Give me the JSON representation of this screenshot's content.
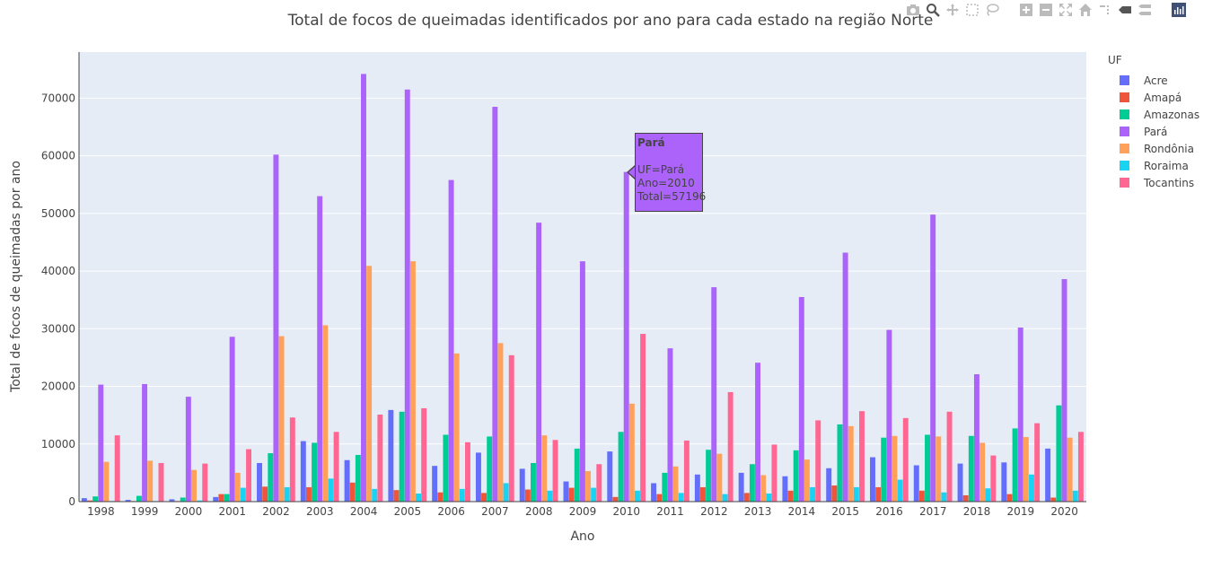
{
  "chart_data": {
    "type": "bar",
    "title": "Total de focos de queimadas identificados por ano para cada estado na região Norte",
    "xlabel": "Ano",
    "ylabel": "Total de focos de queimadas por ano",
    "ylim": [
      0,
      78000
    ],
    "yticks": [
      0,
      10000,
      20000,
      30000,
      40000,
      50000,
      60000,
      70000
    ],
    "grid": true,
    "legend_title": "UF",
    "legend_placement": "right",
    "categories": [
      "1998",
      "1999",
      "2000",
      "2001",
      "2002",
      "2003",
      "2004",
      "2005",
      "2006",
      "2007",
      "2008",
      "2009",
      "2010",
      "2011",
      "2012",
      "2013",
      "2014",
      "2015",
      "2016",
      "2017",
      "2018",
      "2019",
      "2020"
    ],
    "series": [
      {
        "name": "Acre",
        "color": "#636efa",
        "values": [
          600,
          300,
          400,
          800,
          6700,
          10500,
          7200,
          15900,
          6200,
          8500,
          5700,
          3500,
          8700,
          3200,
          4700,
          5000,
          4400,
          5800,
          7700,
          6300,
          6600,
          6800,
          9200
        ]
      },
      {
        "name": "Amapá",
        "color": "#ef553b",
        "values": [
          200,
          100,
          100,
          1300,
          2600,
          2500,
          3300,
          2000,
          1600,
          1500,
          2100,
          2400,
          800,
          1300,
          2500,
          1500,
          1900,
          2800,
          2500,
          1900,
          1100,
          1300,
          700
        ]
      },
      {
        "name": "Amazonas",
        "color": "#00cc96",
        "values": [
          900,
          1000,
          700,
          1300,
          8400,
          10200,
          8100,
          15600,
          11600,
          11300,
          6700,
          9200,
          12100,
          5000,
          9000,
          6500,
          8900,
          13400,
          11100,
          11600,
          11400,
          12700,
          16700
        ]
      },
      {
        "name": "Pará",
        "color": "#ab63fa",
        "values": [
          20300,
          20400,
          18200,
          28600,
          60200,
          53000,
          74200,
          71500,
          55800,
          68500,
          48400,
          41700,
          57196,
          26600,
          37200,
          24100,
          35500,
          43200,
          29800,
          49800,
          22100,
          30200,
          38600
        ]
      },
      {
        "name": "Rondônia",
        "color": "#ffa15a",
        "values": [
          6900,
          7100,
          5500,
          5000,
          28700,
          30600,
          40900,
          41700,
          25700,
          27500,
          11500,
          5300,
          17000,
          6100,
          8300,
          4600,
          7300,
          13100,
          11400,
          11300,
          10200,
          11200,
          11100
        ]
      },
      {
        "name": "Roraima",
        "color": "#19d3f3",
        "values": [
          100,
          100,
          200,
          2400,
          2500,
          4000,
          2200,
          1400,
          2200,
          3200,
          1900,
          2400,
          1900,
          1500,
          1300,
          1400,
          2500,
          2500,
          3800,
          1600,
          2300,
          4700,
          1900
        ]
      },
      {
        "name": "Tocantins",
        "color": "#ff6692",
        "values": [
          11500,
          6700,
          6600,
          9100,
          14600,
          12100,
          15100,
          16200,
          10300,
          25400,
          10700,
          6500,
          29100,
          10600,
          19000,
          9900,
          14100,
          15700,
          14500,
          15600,
          8000,
          13600,
          12100
        ]
      }
    ]
  },
  "tooltip": {
    "title": "Pará",
    "lines": [
      "UF=Pará",
      "Ano=2010",
      "Total=57196"
    ],
    "color": "#ab63fa"
  },
  "modebar": {
    "icons": [
      "camera-icon",
      "zoom-icon",
      "pan-icon",
      "box-select-icon",
      "lasso-icon",
      "zoom-in-icon",
      "zoom-out-icon",
      "autoscale-icon",
      "reset-axes-icon",
      "spike-lines-icon",
      "hover-closest-icon",
      "hover-compare-icon",
      "plotly-logo-icon"
    ]
  }
}
